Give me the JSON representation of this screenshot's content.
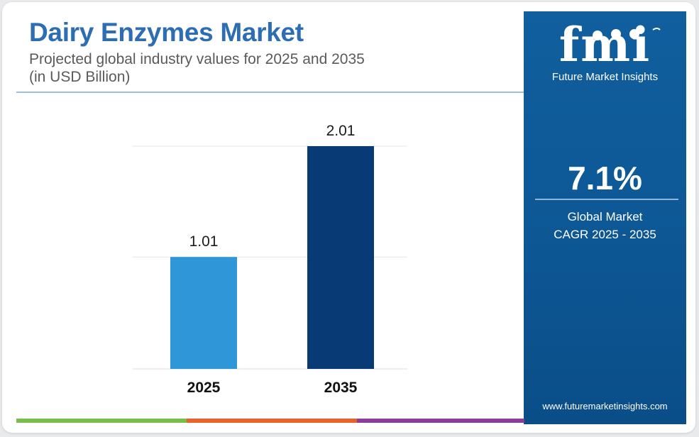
{
  "header": {
    "title": "Dairy Enzymes Market",
    "subtitle": "Projected global industry values for 2025 and 2035",
    "unit": "(in USD Billion)"
  },
  "chart_data": {
    "type": "bar",
    "categories": [
      "2025",
      "2035"
    ],
    "values": [
      1.01,
      2.01
    ],
    "data_labels": [
      "1.01",
      "2.01"
    ],
    "ylim": [
      0,
      2.01
    ],
    "grid": true,
    "colors": [
      "#2f96d8",
      "#083a75"
    ]
  },
  "sidebar": {
    "brand_mark": "fmi",
    "brand_name": "Future Market Insights",
    "cagr_value": "7.1%",
    "cagr_label_line1": "Global Market",
    "cagr_label_line2": "CAGR 2025 - 2035",
    "website": "www.futuremarketinsights.com"
  },
  "accent_colors": {
    "title": "#2c6db3",
    "panel": "#0f5b9a",
    "bottom_stripes": [
      "#79bd4a",
      "#e8622c",
      "#8b3d9a",
      "#0f5b9a"
    ]
  }
}
